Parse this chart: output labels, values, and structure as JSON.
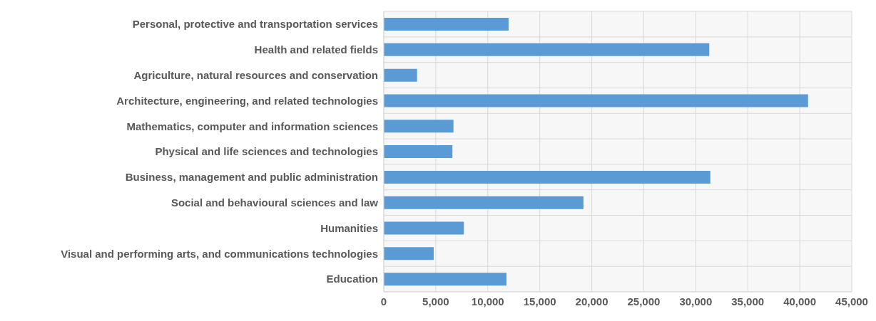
{
  "chart_data": {
    "type": "bar",
    "orientation": "horizontal",
    "categories": [
      "Personal, protective and transportation services",
      "Health and related fields",
      "Agriculture, natural resources and conservation",
      "Architecture, engineering, and related technologies",
      "Mathematics, computer and information sciences",
      "Physical and life sciences and technologies",
      "Business, management and public administration",
      "Social and behavioural sciences and law",
      "Humanities",
      "Visual and performing arts, and communications technologies",
      "Education"
    ],
    "values": [
      12000,
      31300,
      3200,
      40800,
      6700,
      6600,
      31400,
      19200,
      7700,
      4800,
      11800
    ],
    "color": "#5b9bd5",
    "xlim": [
      0,
      45000
    ],
    "xticks": [
      0,
      {
        "value": 5000,
        "label": "5,000"
      },
      {
        "value": 10000,
        "label": "10,000"
      },
      {
        "value": 15000,
        "label": "15,000"
      },
      {
        "value": 20000,
        "label": "20,000"
      },
      {
        "value": 25000,
        "label": "25,000"
      },
      {
        "value": 30000,
        "label": "30,000"
      },
      {
        "value": 35000,
        "label": "35,000"
      },
      {
        "value": 40000,
        "label": "40,000"
      },
      {
        "value": 45000,
        "label": "45,000"
      }
    ],
    "grid": true,
    "legend": false
  }
}
